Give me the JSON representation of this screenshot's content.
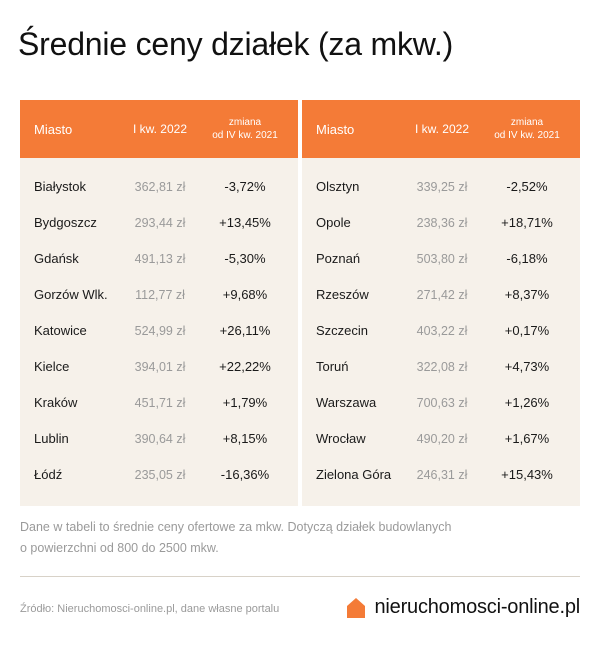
{
  "title": "Średnie ceny działek (za mkw.)",
  "table": {
    "headers": {
      "city": "Miasto",
      "price": "I kw. 2022",
      "change_line1": "zmiana",
      "change_line2": "od IV kw. 2021"
    },
    "left": [
      {
        "city": "Białystok",
        "price": "362,81 zł",
        "change": "-3,72%"
      },
      {
        "city": "Bydgoszcz",
        "price": "293,44 zł",
        "change": "+13,45%"
      },
      {
        "city": "Gdańsk",
        "price": "491,13 zł",
        "change": "-5,30%"
      },
      {
        "city": "Gorzów Wlk.",
        "price": "112,77 zł",
        "change": "+9,68%"
      },
      {
        "city": "Katowice",
        "price": "524,99 zł",
        "change": "+26,11%"
      },
      {
        "city": "Kielce",
        "price": "394,01 zł",
        "change": "+22,22%"
      },
      {
        "city": "Kraków",
        "price": "451,71 zł",
        "change": "+1,79%"
      },
      {
        "city": "Lublin",
        "price": "390,64 zł",
        "change": "+8,15%"
      },
      {
        "city": "Łódź",
        "price": "235,05 zł",
        "change": "-16,36%"
      }
    ],
    "right": [
      {
        "city": "Olsztyn",
        "price": "339,25 zł",
        "change": "-2,52%"
      },
      {
        "city": "Opole",
        "price": "238,36 zł",
        "change": "+18,71%"
      },
      {
        "city": "Poznań",
        "price": "503,80 zł",
        "change": "-6,18%"
      },
      {
        "city": "Rzeszów",
        "price": "271,42 zł",
        "change": "+8,37%"
      },
      {
        "city": "Szczecin",
        "price": "403,22 zł",
        "change": "+0,17%"
      },
      {
        "city": "Toruń",
        "price": "322,08 zł",
        "change": "+4,73%"
      },
      {
        "city": "Warszawa",
        "price": "700,63 zł",
        "change": "+1,26%"
      },
      {
        "city": "Wrocław",
        "price": "490,20 zł",
        "change": "+1,67%"
      },
      {
        "city": "Zielona Góra",
        "price": "246,31 zł",
        "change": "+15,43%"
      }
    ]
  },
  "note_line1": "Dane w tabeli to średnie ceny ofertowe za mkw. Dotyczą działek budowlanych",
  "note_line2": "o powierzchni od 800 do 2500 mkw.",
  "source": "Źródło: Nieruchomosci-online.pl, dane własne portalu",
  "logo": {
    "text": "nieruchomosci-online.pl",
    "icon": "house-icon"
  },
  "colors": {
    "accent": "#f47b37",
    "panel_bg": "#f6f1ea",
    "muted_text": "#9a9a9a"
  }
}
